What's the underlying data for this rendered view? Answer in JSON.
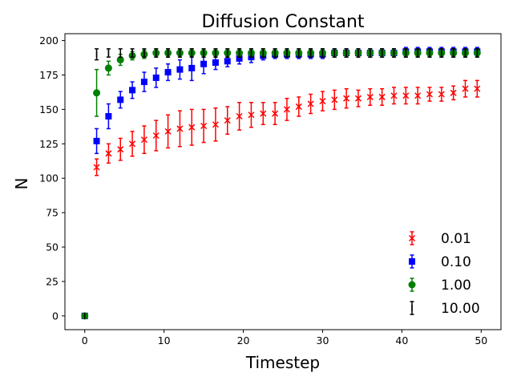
{
  "chart_data": {
    "type": "scatter",
    "title": "Diffusion Constant",
    "xlabel": "Timestep",
    "ylabel": "N",
    "xlim": [
      -2.5,
      52.5
    ],
    "ylim": [
      -10,
      205
    ],
    "xticks": [
      0,
      10,
      20,
      30,
      40,
      50
    ],
    "yticks": [
      0,
      25,
      50,
      75,
      100,
      125,
      150,
      175,
      200
    ],
    "grid": false,
    "legend_position": "lower-right",
    "series": [
      {
        "name": "0.01",
        "color": "#ff0000",
        "marker": "x",
        "points": [
          [
            0,
            0,
            0
          ],
          [
            1.5,
            108,
            6
          ],
          [
            3,
            118,
            7
          ],
          [
            4.5,
            121,
            8
          ],
          [
            6,
            125,
            9
          ],
          [
            7.5,
            128,
            10
          ],
          [
            9,
            131,
            11
          ],
          [
            10.5,
            134,
            12
          ],
          [
            12,
            136,
            13
          ],
          [
            13.5,
            137,
            13
          ],
          [
            15,
            138,
            12
          ],
          [
            16.5,
            139,
            12
          ],
          [
            18,
            142,
            10
          ],
          [
            19.5,
            145,
            10
          ],
          [
            21,
            146,
            9
          ],
          [
            22.5,
            147,
            8
          ],
          [
            24,
            147,
            8
          ],
          [
            25.5,
            150,
            8
          ],
          [
            27,
            152,
            7
          ],
          [
            28.5,
            154,
            7
          ],
          [
            30,
            156,
            7
          ],
          [
            31.5,
            157,
            7
          ],
          [
            33,
            158,
            7
          ],
          [
            34.5,
            158,
            6
          ],
          [
            36,
            159,
            6
          ],
          [
            37.5,
            159,
            6
          ],
          [
            39,
            160,
            6
          ],
          [
            40.5,
            160,
            6
          ],
          [
            42,
            160,
            6
          ],
          [
            43.5,
            161,
            5
          ],
          [
            45,
            161,
            5
          ],
          [
            46.5,
            162,
            5
          ],
          [
            48,
            165,
            6
          ],
          [
            49.5,
            165,
            6
          ]
        ]
      },
      {
        "name": "0.10",
        "color": "#0000ff",
        "marker": "s",
        "points": [
          [
            0,
            0,
            0
          ],
          [
            1.5,
            127,
            9
          ],
          [
            3,
            145,
            9
          ],
          [
            4.5,
            157,
            6
          ],
          [
            6,
            164,
            6
          ],
          [
            7.5,
            170,
            7
          ],
          [
            9,
            173,
            7
          ],
          [
            10.5,
            177,
            6
          ],
          [
            12,
            179,
            7
          ],
          [
            13.5,
            180,
            9
          ],
          [
            15,
            183,
            7
          ],
          [
            16.5,
            184,
            5
          ],
          [
            18,
            185,
            4
          ],
          [
            19.5,
            187,
            4
          ],
          [
            21,
            188,
            4
          ],
          [
            22.5,
            189,
            3
          ],
          [
            24,
            190,
            3
          ],
          [
            25.5,
            190,
            3
          ],
          [
            27,
            190,
            3
          ],
          [
            28.5,
            190,
            3
          ],
          [
            30,
            190,
            3
          ],
          [
            31.5,
            191,
            3
          ],
          [
            33,
            191,
            3
          ],
          [
            34.5,
            191,
            3
          ],
          [
            36,
            191,
            3
          ],
          [
            37.5,
            191,
            3
          ],
          [
            39,
            191,
            3
          ],
          [
            40.5,
            192,
            3
          ],
          [
            42,
            192,
            3
          ],
          [
            43.5,
            192,
            3
          ],
          [
            45,
            192,
            3
          ],
          [
            46.5,
            192,
            3
          ],
          [
            48,
            192,
            3
          ],
          [
            49.5,
            192,
            3
          ]
        ]
      },
      {
        "name": "1.00",
        "color": "#008000",
        "marker": "o",
        "points": [
          [
            0,
            0,
            0
          ],
          [
            1.5,
            162,
            17
          ],
          [
            3,
            180,
            5
          ],
          [
            4.5,
            186,
            4
          ],
          [
            6,
            189,
            3
          ],
          [
            7.5,
            190,
            3
          ],
          [
            9,
            191,
            3
          ],
          [
            10.5,
            191,
            3
          ],
          [
            12,
            191,
            3
          ],
          [
            13.5,
            191,
            3
          ],
          [
            15,
            191,
            3
          ],
          [
            16.5,
            191,
            3
          ],
          [
            18,
            191,
            3
          ],
          [
            19.5,
            191,
            3
          ],
          [
            21,
            191,
            3
          ],
          [
            22.5,
            191,
            3
          ],
          [
            24,
            191,
            3
          ],
          [
            25.5,
            191,
            3
          ],
          [
            27,
            191,
            3
          ],
          [
            28.5,
            191,
            3
          ],
          [
            30,
            191,
            3
          ],
          [
            31.5,
            191,
            3
          ],
          [
            33,
            191,
            3
          ],
          [
            34.5,
            191,
            3
          ],
          [
            36,
            191,
            3
          ],
          [
            37.5,
            191,
            3
          ],
          [
            39,
            191,
            3
          ],
          [
            40.5,
            191,
            3
          ],
          [
            42,
            191,
            3
          ],
          [
            43.5,
            191,
            3
          ],
          [
            45,
            191,
            3
          ],
          [
            46.5,
            191,
            3
          ],
          [
            48,
            191,
            3
          ],
          [
            49.5,
            191,
            3
          ]
        ]
      },
      {
        "name": "10.00",
        "color": "#000000",
        "marker": "|",
        "points": [
          [
            0,
            0,
            0
          ],
          [
            1.5,
            190,
            4
          ],
          [
            3,
            191,
            3
          ],
          [
            4.5,
            191,
            3
          ],
          [
            6,
            191,
            3
          ],
          [
            7.5,
            191,
            3
          ],
          [
            9,
            191,
            3
          ],
          [
            10.5,
            191,
            3
          ],
          [
            12,
            191,
            3
          ],
          [
            13.5,
            191,
            3
          ],
          [
            15,
            191,
            3
          ],
          [
            16.5,
            191,
            3
          ],
          [
            18,
            191,
            3
          ],
          [
            19.5,
            191,
            3
          ],
          [
            21,
            191,
            3
          ],
          [
            22.5,
            191,
            3
          ],
          [
            24,
            191,
            3
          ],
          [
            25.5,
            191,
            3
          ],
          [
            27,
            191,
            3
          ],
          [
            28.5,
            191,
            3
          ],
          [
            30,
            191,
            3
          ],
          [
            31.5,
            191,
            3
          ],
          [
            33,
            191,
            3
          ],
          [
            34.5,
            191,
            3
          ],
          [
            36,
            191,
            3
          ],
          [
            37.5,
            191,
            3
          ],
          [
            39,
            191,
            3
          ],
          [
            40.5,
            191,
            3
          ],
          [
            42,
            191,
            3
          ],
          [
            43.5,
            191,
            3
          ],
          [
            45,
            191,
            3
          ],
          [
            46.5,
            191,
            3
          ],
          [
            48,
            191,
            3
          ],
          [
            49.5,
            191,
            3
          ]
        ]
      }
    ]
  }
}
